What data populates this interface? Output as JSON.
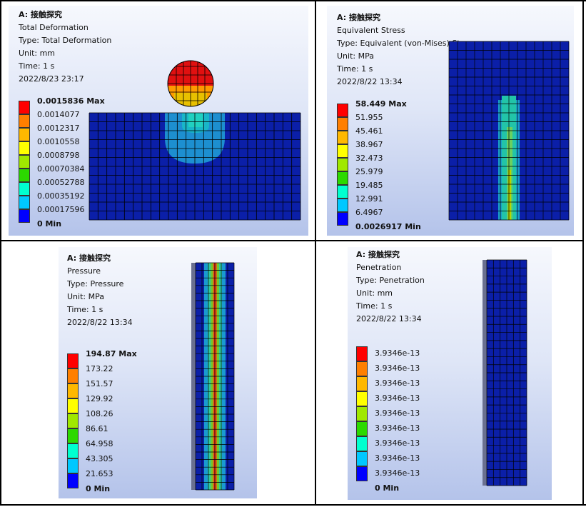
{
  "colors": {
    "scale": [
      "#0000ff",
      "#0092ff",
      "#00c8ff",
      "#00ffd0",
      "#2cd900",
      "#a0e800",
      "#ffff00",
      "#ffb800",
      "#ff7f00",
      "#ff0000"
    ],
    "mesh_blue": "#0b1fa8",
    "mesh_line": "#000000"
  },
  "panels": [
    {
      "title": "A: 接触探究",
      "lines": [
        "Total Deformation",
        "Type: Total Deformation",
        "Unit: mm",
        "Time: 1 s",
        "2022/8/23 23:17"
      ],
      "legend": {
        "max": "0.0015836 Max",
        "values": [
          "0.0014077",
          "0.0012317",
          "0.0010558",
          "0.0008798",
          "0.00070384",
          "0.00052788",
          "0.00035192",
          "0.00017596"
        ],
        "min": "0 Min"
      }
    },
    {
      "title": "A: 接触探究",
      "lines": [
        "Equivalent Stress",
        "Type: Equivalent (von-Mises) Stress",
        "Unit: MPa",
        "Time: 1 s",
        "2022/8/22 13:34"
      ],
      "legend": {
        "max": "58.449 Max",
        "values": [
          "51.955",
          "45.461",
          "38.967",
          "32.473",
          "25.979",
          "19.485",
          "12.991",
          "6.4967"
        ],
        "min": "0.0026917 Min"
      }
    },
    {
      "title": "A: 接触探究",
      "lines": [
        "Pressure",
        "Type: Pressure",
        "Unit: MPa",
        "Time: 1 s",
        "2022/8/22 13:34"
      ],
      "legend": {
        "max": "194.87 Max",
        "values": [
          "173.22",
          "151.57",
          "129.92",
          "108.26",
          "86.61",
          "64.958",
          "43.305",
          "21.653"
        ],
        "min": "0 Min"
      }
    },
    {
      "title": "A: 接触探究",
      "lines": [
        "Penetration",
        "Type: Penetration",
        "Unit: mm",
        "Time: 1 s",
        "2022/8/22 13:34"
      ],
      "legend": {
        "max": "3.9346e-13",
        "values": [
          "3.9346e-13",
          "3.9346e-13",
          "3.9346e-13",
          "3.9346e-13",
          "3.9346e-13",
          "3.9346e-13",
          "3.9346e-13",
          "3.9346e-13"
        ],
        "min": "0 Min"
      }
    }
  ]
}
